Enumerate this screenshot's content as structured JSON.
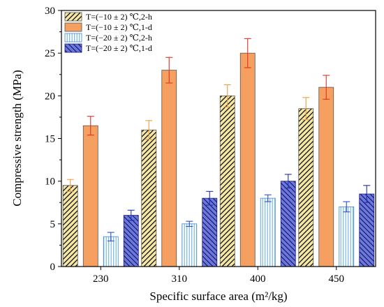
{
  "chart_data": {
    "type": "bar",
    "xlabel": "Specific surface area (m²/kg)",
    "ylabel": "Compressive strength (MPa)",
    "ylim": [
      0,
      30
    ],
    "yticks": [
      0,
      5,
      10,
      15,
      20,
      25,
      30
    ],
    "categories": [
      "230",
      "310",
      "400",
      "450"
    ],
    "legend_position": "top-left",
    "grid": false,
    "series": [
      {
        "name": "T=(−10 ± 2) ℃,2-h",
        "values": [
          9.5,
          16.0,
          20.0,
          18.5
        ],
        "errors": [
          0.7,
          1.1,
          1.3,
          1.3
        ],
        "fill": "#f5e6a0",
        "pattern": "hatch-diag-right",
        "error_color": "#e8a040"
      },
      {
        "name": "T=(−10 ± 2) ℃,1-d",
        "values": [
          16.5,
          23.0,
          25.0,
          21.0
        ],
        "errors": [
          1.1,
          1.5,
          1.7,
          1.4
        ],
        "fill": "#f5a060",
        "pattern": "none",
        "error_color": "#e03020"
      },
      {
        "name": "T=(−20 ± 2) ℃,2-h",
        "values": [
          3.5,
          5.0,
          8.0,
          7.0
        ],
        "errors": [
          0.5,
          0.3,
          0.4,
          0.6
        ],
        "fill": "#ffffff",
        "pattern": "vertical-lines",
        "error_color": "#3050d0"
      },
      {
        "name": "T=(−20 ± 2) ℃,1-d",
        "values": [
          6.0,
          8.0,
          10.0,
          8.5
        ],
        "errors": [
          0.6,
          0.8,
          0.8,
          1.0
        ],
        "fill": "#6a78e0",
        "pattern": "hatch-diag-left",
        "error_color": "#2030b0"
      }
    ]
  }
}
